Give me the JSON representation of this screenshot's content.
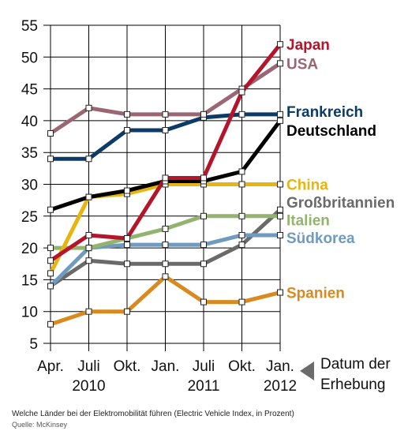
{
  "chart_data": {
    "type": "line",
    "x": [
      "Apr.",
      "Juli",
      "Okt.",
      "Jan.",
      "Juli",
      "Okt.",
      "Jan."
    ],
    "year_labels": [
      {
        "label": "2010",
        "at": 1
      },
      {
        "label": "2011",
        "at": 4
      },
      {
        "label": "2012",
        "at": 6
      }
    ],
    "ylim": [
      5,
      55
    ],
    "yticks": [
      5,
      10,
      15,
      20,
      25,
      30,
      35,
      40,
      45,
      50,
      55
    ],
    "x_axis_note": [
      "Datum der",
      "Erhebung"
    ],
    "caption": "Welche Länder bei der Elektromobilität führen (Electric Vehicle Index, in Prozent)",
    "source": "Quelle: McKinsey",
    "series": [
      {
        "name": "Spanien",
        "color": "#d98a1f",
        "values": [
          8,
          10,
          10,
          15.5,
          11.5,
          11.5,
          13
        ]
      },
      {
        "name": "Großbritannien",
        "color": "#6a6a6a",
        "values": [
          14,
          18,
          17.5,
          17.5,
          17.5,
          20.5,
          26
        ]
      },
      {
        "name": "Südkorea",
        "color": "#6f9bbf",
        "values": [
          14,
          20,
          20.5,
          20.5,
          20.5,
          22,
          22
        ]
      },
      {
        "name": "Italien",
        "color": "#93b46e",
        "values": [
          20,
          20,
          21.5,
          23,
          25,
          25,
          25
        ]
      },
      {
        "name": "China",
        "color": "#e6b512",
        "values": [
          16,
          28,
          28.5,
          30,
          30,
          30,
          30
        ]
      },
      {
        "name": "Deutschland",
        "color": "#000000",
        "values": [
          26,
          28,
          29,
          30.5,
          30.5,
          32,
          40
        ]
      },
      {
        "name": "Frankreich",
        "color": "#0e3b66",
        "values": [
          34,
          34,
          38.5,
          38.5,
          40.5,
          41,
          41
        ]
      },
      {
        "name": "USA",
        "color": "#9a6674",
        "values": [
          38,
          42,
          41,
          41,
          41,
          45,
          49
        ]
      },
      {
        "name": "Japan",
        "color": "#b5152b",
        "values": [
          18,
          22,
          21.5,
          31,
          31,
          44.5,
          52
        ]
      }
    ],
    "legend": [
      {
        "name": "Japan",
        "color": "#b5152b",
        "y": 52
      },
      {
        "name": "USA",
        "color": "#9a6674",
        "y": 49
      },
      {
        "name": "Frankreich",
        "color": "#0e3b66",
        "y": 41.5
      },
      {
        "name": "Deutschland",
        "color": "#000000",
        "y": 38.5
      },
      {
        "name": "China",
        "color": "#e6b512",
        "y": 30
      },
      {
        "name": "Großbritannien",
        "color": "#6a6a6a",
        "y": 27.2
      },
      {
        "name": "Italien",
        "color": "#93b46e",
        "y": 24.4
      },
      {
        "name": "Südkorea",
        "color": "#6f9bbf",
        "y": 21.6
      },
      {
        "name": "Spanien",
        "color": "#d98a1f",
        "y": 13
      }
    ]
  }
}
